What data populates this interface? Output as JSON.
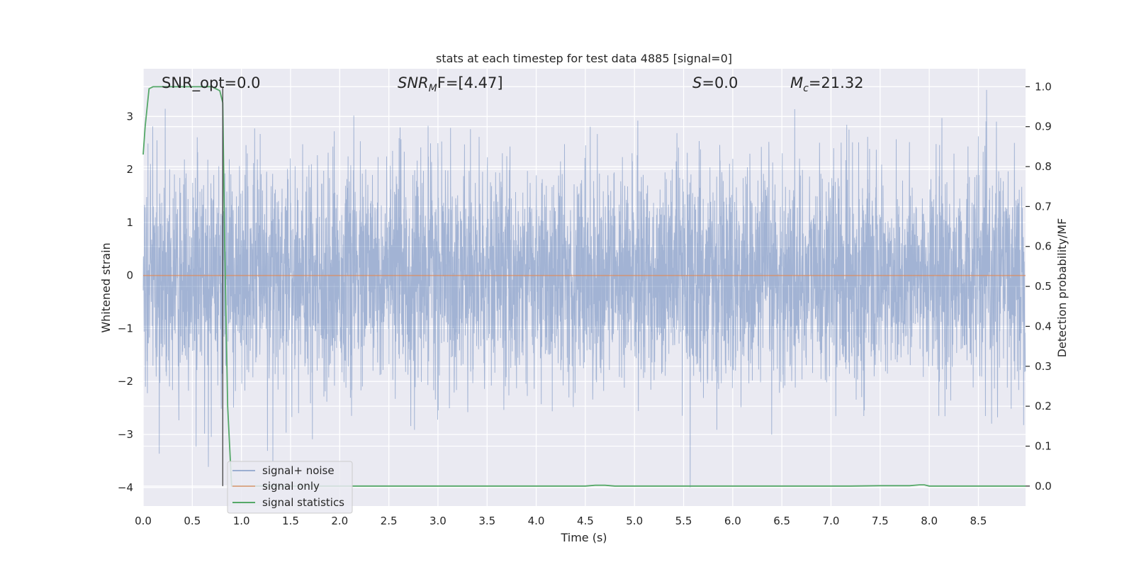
{
  "chart_data": {
    "type": "line",
    "title": "stats at each timestep for test data 4885 [signal=0]",
    "xlabel": "Time (s)",
    "ylabel": "Whitened strain",
    "y2label": "Detection probability/MF",
    "xlim": [
      0.0,
      8.98
    ],
    "ylim": [
      -4.35,
      3.9
    ],
    "y2lim": [
      -0.05,
      1.045
    ],
    "xticks": [
      "0.0",
      "0.5",
      "1.0",
      "1.5",
      "2.0",
      "2.5",
      "3.0",
      "3.5",
      "4.0",
      "4.5",
      "5.0",
      "5.5",
      "6.0",
      "6.5",
      "7.0",
      "7.5",
      "8.0",
      "8.5"
    ],
    "yticks": [
      "3",
      "2",
      "1",
      "0",
      "−1",
      "−2",
      "−3",
      "−4"
    ],
    "y2ticks": [
      "1.0",
      "0.9",
      "0.8",
      "0.7",
      "0.6",
      "0.5",
      "0.4",
      "0.3",
      "0.2",
      "0.1",
      "0.0"
    ],
    "grid": true,
    "legend_position": "lower-left",
    "annotations": {
      "snr_opt": "SNR_opt=0.0",
      "snr_mf_main": "SNR",
      "snr_mf_sub": "M",
      "snr_mf_rest": "F=[4.47]",
      "s_var": "S",
      "s_rest": "=0.0",
      "mc_var": "M",
      "mc_sub": "c",
      "mc_rest": "=21.32"
    },
    "vline_x": 0.81,
    "colors": {
      "noise": "#4c72b0",
      "signal": "#dd8452",
      "stats": "#55a868",
      "background": "#eaeaf2",
      "vline": "#444444"
    },
    "series": [
      {
        "name": "signal+ noise",
        "axis": "left",
        "kind": "noise",
        "mean": 0.0,
        "typical_range": [
          -2.0,
          2.0
        ],
        "peak_range": [
          -4.0,
          3.5
        ]
      },
      {
        "name": "signal only",
        "axis": "left",
        "x": [
          0.0,
          8.98
        ],
        "y": [
          0.0,
          0.0
        ]
      },
      {
        "name": "signal statistics",
        "axis": "right",
        "x": [
          0.0,
          0.02,
          0.06,
          0.1,
          0.2,
          0.7,
          0.78,
          0.81,
          0.83,
          0.86,
          0.9,
          1.0,
          4.5,
          4.6,
          4.7,
          4.8,
          7.2,
          7.5,
          7.8,
          7.9,
          7.95,
          8.0,
          8.98
        ],
        "y": [
          0.83,
          0.9,
          0.995,
          1.0,
          1.0,
          1.0,
          0.99,
          0.96,
          0.6,
          0.2,
          0.0,
          0.0,
          0.0,
          0.002,
          0.002,
          0.0,
          0.0,
          0.001,
          0.001,
          0.003,
          0.003,
          0.0,
          0.0
        ]
      }
    ]
  }
}
